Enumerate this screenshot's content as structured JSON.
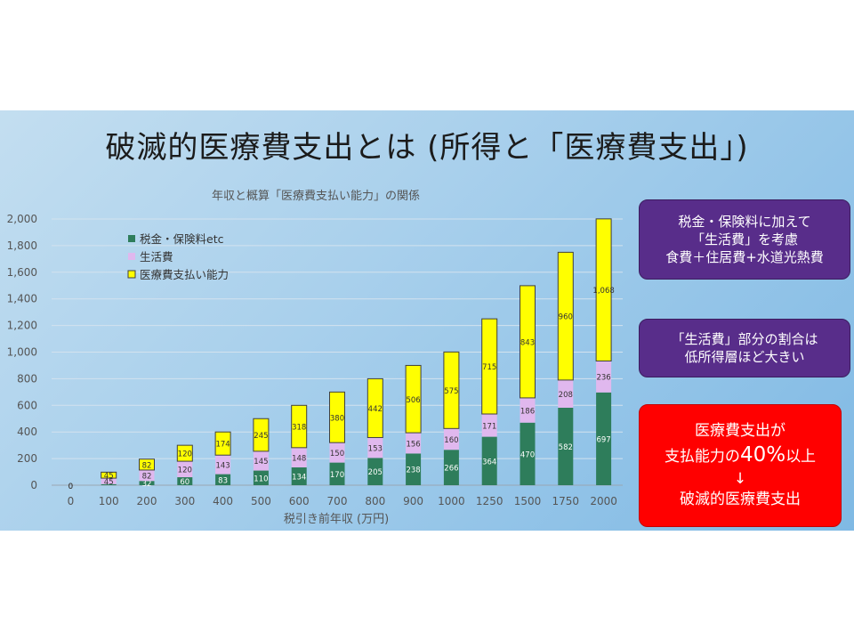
{
  "slide": {
    "title": "破滅的医療費支出とは (所得と「医療費支出」)"
  },
  "callouts": {
    "living_cost": "税金・保険料に加えて\n「生活費」を考慮\n食費＋住居費+水道光熱費",
    "ratio": "「生活費」部分の割合は\n低所得層ほど大きい",
    "red_line1": "医療費支出が",
    "red_line2_pre": "支払能力の",
    "red_line2_big": "40%",
    "red_line2_post": "以上",
    "red_arrow": "↓",
    "red_line4": "破滅的医療費支出"
  },
  "colors": {
    "tax": "#2e7d5b",
    "living": "#e0b8ee",
    "capacity": "#ffff00"
  },
  "chart_data": {
    "type": "bar",
    "stacked": true,
    "title": "年収と概算「医療費支払い能力」の関係",
    "xlabel": "税引き前年収 (万円)",
    "ylabel": "",
    "ylim": [
      0,
      2000
    ],
    "yticks": [
      "0",
      "200",
      "400",
      "600",
      "800",
      "1,000",
      "1,200",
      "1,400",
      "1,600",
      "1,800",
      "2,000"
    ],
    "grid": true,
    "legend_position": "top-left",
    "categories": [
      "0",
      "100",
      "200",
      "300",
      "400",
      "500",
      "600",
      "700",
      "800",
      "900",
      "1000",
      "1250",
      "1500",
      "1750",
      "2000"
    ],
    "series": [
      {
        "name": "税金・保険料etc",
        "color": "#2e7d5b",
        "labelColor": "#ffffff",
        "values": [
          0,
          8,
          32,
          60,
          83,
          110,
          134,
          170,
          205,
          238,
          266,
          364,
          470,
          582,
          697
        ],
        "labels": [
          "0",
          "",
          "32",
          "60",
          "83",
          "110",
          "134",
          "170",
          "205",
          "238",
          "266",
          "364",
          "470",
          "582",
          "697"
        ]
      },
      {
        "name": "生活費",
        "color": "#e0b8ee",
        "labelColor": "#333333",
        "values": [
          0,
          45,
          82,
          120,
          143,
          145,
          148,
          150,
          153,
          156,
          160,
          171,
          186,
          208,
          236
        ],
        "labels": [
          "0",
          "45",
          "82",
          "120",
          "143",
          "145",
          "148",
          "150",
          "153",
          "156",
          "160",
          "171",
          "186",
          "208",
          "236"
        ]
      },
      {
        "name": "医療費支払い能力",
        "color": "#ffff00",
        "labelColor": "#333333",
        "values": [
          0,
          45,
          82,
          120,
          174,
          245,
          318,
          380,
          442,
          506,
          575,
          715,
          843,
          960,
          1068
        ],
        "labels": [
          "0",
          "45",
          "82",
          "120",
          "174",
          "245",
          "318",
          "380",
          "442",
          "506",
          "575",
          "715",
          "843",
          "960",
          "1,068"
        ]
      }
    ]
  }
}
